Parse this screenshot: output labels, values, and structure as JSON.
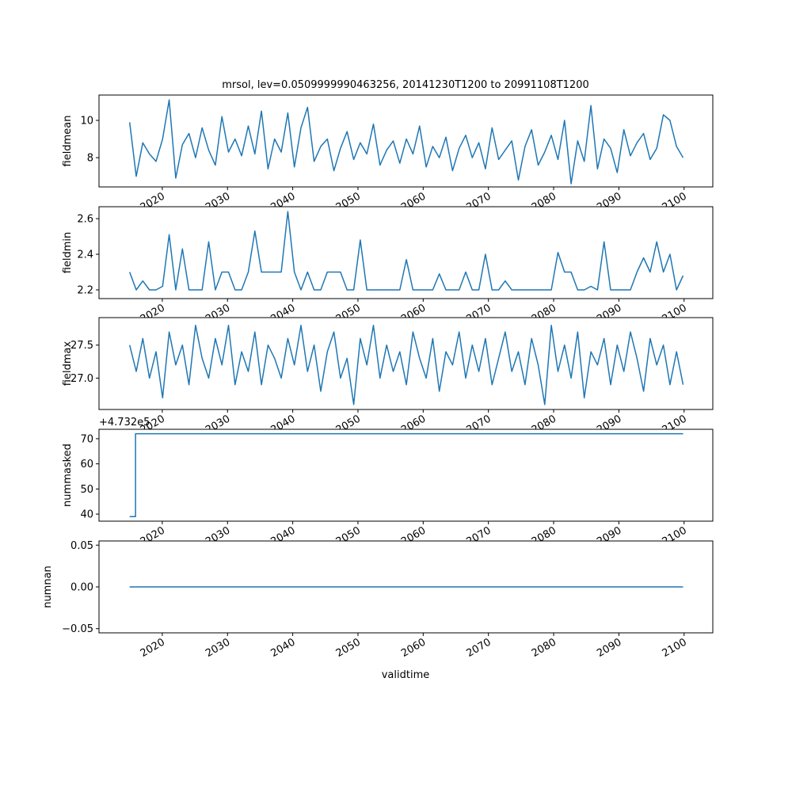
{
  "chart_data": {
    "type": "line",
    "title": "mrsol, lev=0.0509999990463256, 20141230T1200 to 20991108T1200",
    "xlabel": "validtime",
    "xlim": [
      2010.3,
      2104.4
    ],
    "x_ticks": [
      2020,
      2030,
      2040,
      2050,
      2060,
      2070,
      2080,
      2090,
      2100
    ],
    "x_start": 2015.0,
    "x_end": 2099.85,
    "line_color": "#1f77b4",
    "grid": false,
    "panels": [
      {
        "ylabel": "fieldmean",
        "ylim": [
          6.43,
          11.36
        ],
        "y_ticks": [
          8,
          10
        ],
        "y_tick_labels": [
          "8",
          "10"
        ],
        "values": [
          9.9,
          7.0,
          8.8,
          8.2,
          7.8,
          9.0,
          11.1,
          6.9,
          8.7,
          9.3,
          8.0,
          9.6,
          8.4,
          7.6,
          10.2,
          8.3,
          9.0,
          8.1,
          9.7,
          8.2,
          10.5,
          7.4,
          9.0,
          8.3,
          10.4,
          7.5,
          9.6,
          10.7,
          7.8,
          8.6,
          9.0,
          7.3,
          8.5,
          9.4,
          7.9,
          8.8,
          8.2,
          9.8,
          7.6,
          8.4,
          8.9,
          7.7,
          9.0,
          8.2,
          9.7,
          7.5,
          8.6,
          8.0,
          9.1,
          7.3,
          8.5,
          9.2,
          8.0,
          8.8,
          7.4,
          9.6,
          7.9,
          8.4,
          8.9,
          6.8,
          8.6,
          9.5,
          7.6,
          8.3,
          9.2,
          7.9,
          10.0,
          6.6,
          8.9,
          7.8,
          10.8,
          7.4,
          9.0,
          8.5,
          7.2,
          9.5,
          8.1,
          8.8,
          9.3,
          7.9,
          8.5,
          10.3,
          10.0,
          8.6,
          8.0
        ]
      },
      {
        "ylabel": "fieldmin",
        "ylim": [
          2.151,
          2.667
        ],
        "y_ticks": [
          2.2,
          2.4,
          2.6
        ],
        "y_tick_labels": [
          "2.2",
          "2.4",
          "2.6"
        ],
        "values": [
          2.3,
          2.2,
          2.25,
          2.2,
          2.2,
          2.22,
          2.51,
          2.2,
          2.43,
          2.2,
          2.2,
          2.2,
          2.47,
          2.2,
          2.3,
          2.3,
          2.2,
          2.2,
          2.3,
          2.53,
          2.3,
          2.3,
          2.3,
          2.3,
          2.64,
          2.3,
          2.2,
          2.3,
          2.2,
          2.2,
          2.3,
          2.3,
          2.3,
          2.2,
          2.2,
          2.48,
          2.2,
          2.2,
          2.2,
          2.2,
          2.2,
          2.2,
          2.37,
          2.2,
          2.2,
          2.2,
          2.2,
          2.29,
          2.2,
          2.2,
          2.2,
          2.3,
          2.2,
          2.2,
          2.4,
          2.2,
          2.2,
          2.25,
          2.2,
          2.2,
          2.2,
          2.2,
          2.2,
          2.2,
          2.2,
          2.41,
          2.3,
          2.3,
          2.2,
          2.2,
          2.22,
          2.2,
          2.47,
          2.2,
          2.2,
          2.2,
          2.2,
          2.3,
          2.38,
          2.3,
          2.47,
          2.3,
          2.4,
          2.2,
          2.28
        ]
      },
      {
        "ylabel": "fieldmax",
        "ylim": [
          26.524,
          27.917
        ],
        "y_ticks": [
          27.0,
          27.5
        ],
        "y_tick_labels": [
          "27.0",
          "27.5"
        ],
        "values": [
          27.5,
          27.1,
          27.6,
          27.0,
          27.4,
          26.7,
          27.7,
          27.2,
          27.5,
          26.9,
          27.8,
          27.3,
          27.0,
          27.6,
          27.2,
          27.8,
          26.9,
          27.4,
          27.1,
          27.7,
          26.9,
          27.5,
          27.3,
          27.0,
          27.6,
          27.2,
          27.8,
          27.1,
          27.5,
          26.8,
          27.4,
          27.7,
          27.0,
          27.3,
          26.6,
          27.6,
          27.2,
          27.8,
          27.0,
          27.5,
          27.1,
          27.4,
          26.9,
          27.7,
          27.3,
          27.0,
          27.6,
          26.8,
          27.4,
          27.2,
          27.7,
          27.0,
          27.5,
          27.1,
          27.6,
          26.9,
          27.3,
          27.7,
          27.1,
          27.4,
          26.9,
          27.6,
          27.2,
          26.6,
          27.8,
          27.1,
          27.5,
          27.0,
          27.7,
          26.7,
          27.4,
          27.2,
          27.6,
          26.9,
          27.5,
          27.1,
          27.7,
          27.3,
          26.8,
          27.6,
          27.2,
          27.5,
          26.9,
          27.4,
          26.9
        ]
      },
      {
        "ylabel": "nummasked",
        "ylim": [
          37.19,
          73.75
        ],
        "y_ticks": [
          40,
          50,
          60,
          70
        ],
        "y_tick_labels": [
          "40",
          "50",
          "60",
          "70"
        ],
        "offset_text": "+4.732e5",
        "x": [
          2015.0,
          2015.9,
          2015.9,
          2099.85
        ],
        "values": [
          39,
          39,
          72,
          72
        ]
      },
      {
        "ylabel": "numnan",
        "ylim": [
          -0.055,
          0.055
        ],
        "y_ticks": [
          -0.05,
          0.0,
          0.05
        ],
        "y_tick_labels": [
          "−0.05",
          "0.00",
          "0.05"
        ],
        "x": [
          2015.0,
          2099.85
        ],
        "values": [
          0,
          0
        ]
      }
    ]
  }
}
